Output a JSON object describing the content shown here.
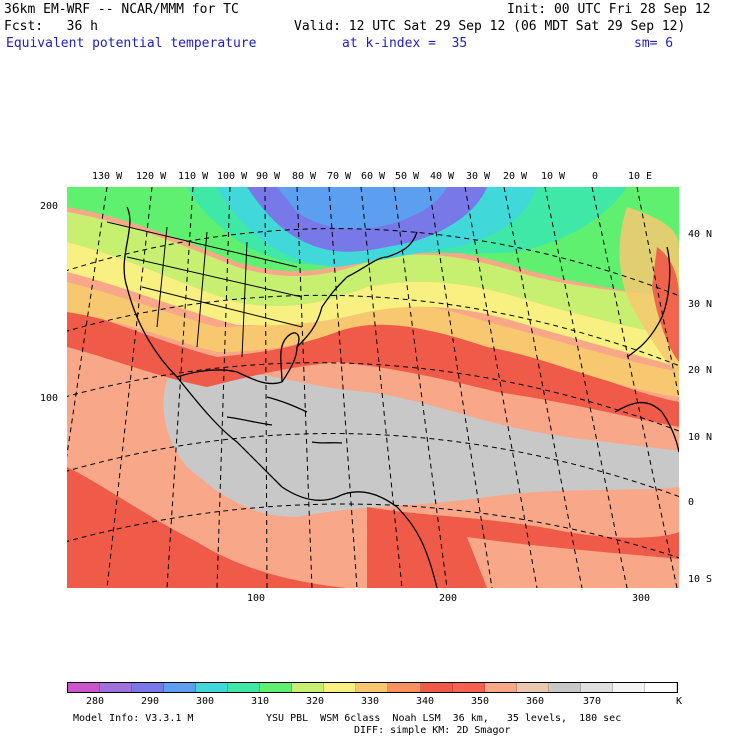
{
  "header": {
    "line1_left": "36km EM-WRF -- NCAR/MMM for TC",
    "line1_right": "Init: 00 UTC Fri 28 Sep 12",
    "line2_left": "Fcst:   36 h",
    "line2_right": "Valid: 12 UTC Sat 29 Sep 12 (06 MDT Sat 29 Sep 12)",
    "field_name": "Equivalent potential temperature",
    "level": "at k-index =  35",
    "smoothing": "sm= 6"
  },
  "map": {
    "lon_labels": [
      "130 W",
      "120 W",
      "110 W",
      "100 W",
      "90 W",
      "80 W",
      "70 W",
      "60 W",
      "50 W",
      "40 W",
      "30 W",
      "20 W",
      "10 W",
      "0",
      "10 E"
    ],
    "lat_labels": [
      "40 N",
      "30 N",
      "20 N",
      "10 N",
      "0",
      "10 S"
    ],
    "y_grid_labels": [
      "200",
      "100"
    ],
    "x_grid_labels": [
      "100",
      "200",
      "300"
    ]
  },
  "colorbar": {
    "labels": [
      "280",
      "290",
      "300",
      "310",
      "320",
      "330",
      "340",
      "350",
      "360",
      "370",
      "K"
    ],
    "colors": [
      "#cc55cc",
      "#a070dd",
      "#7878e8",
      "#5c9ef0",
      "#40d8d8",
      "#40e8a8",
      "#60f070",
      "#c8f070",
      "#f8f080",
      "#f8c870",
      "#f89060",
      "#f05a48",
      "#f86050",
      "#f8a888",
      "#e8c8b0",
      "#c8c8c8",
      "#e0e0e0",
      "#f4f4f4",
      "#ffffff"
    ]
  },
  "footer": {
    "model_info": "Model Info: V3.3.1 M",
    "physics_1": "YSU PBL  WSM 6class  Noah LSM  36 km,   35 levels,  180 sec",
    "physics_2": "DIFF: simple KM: 2D Smagor"
  }
}
